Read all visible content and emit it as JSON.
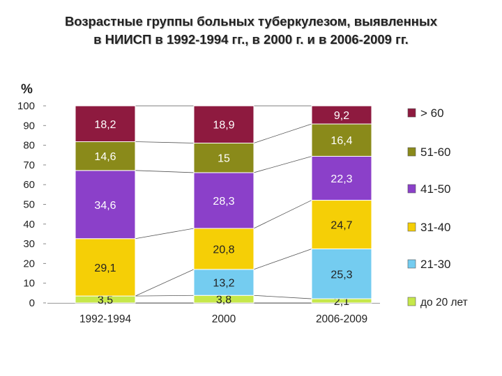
{
  "title": {
    "line1": "Возрастные группы больных туберкулезом, выявленных",
    "line2": "в НИИСП в 1992-1994 гг.,  в 2000 г. и  в 2006-2009 гг."
  },
  "chart_data": {
    "type": "bar",
    "stacked": true,
    "ylabel": "%",
    "ylim": [
      0,
      100
    ],
    "yticks": [
      "0",
      "10",
      "20",
      "30",
      "40",
      "50",
      "60",
      "70",
      "80",
      "90",
      "100"
    ],
    "categories": [
      "1992-1994",
      "2000",
      "2006-2009"
    ],
    "series": [
      {
        "name": "до 20 лет",
        "color": "#c6e84a",
        "values": [
          3.5,
          3.8,
          2.1
        ],
        "labels": [
          "3,5",
          "3,8",
          "2,1"
        ]
      },
      {
        "name": "21-30",
        "color": "#74ccf0",
        "values": [
          0,
          13.2,
          25.3
        ],
        "labels": [
          "",
          "13,2",
          "25,3"
        ]
      },
      {
        "name": "31-40",
        "color": "#f5cf06",
        "values": [
          29.1,
          20.8,
          24.7
        ],
        "labels": [
          "29,1",
          "20,8",
          "24,7"
        ]
      },
      {
        "name": "41-50",
        "color": "#8b40c9",
        "values": [
          34.6,
          28.3,
          22.3
        ],
        "labels": [
          "34,6",
          "28,3",
          "22,3"
        ]
      },
      {
        "name": "51-60",
        "color": "#8a8a1a",
        "values": [
          14.6,
          15,
          16.4
        ],
        "labels": [
          "14,6",
          "15",
          "16,4"
        ]
      },
      {
        "name": "> 60",
        "color": "#8e1a3f",
        "values": [
          18.2,
          18.9,
          9.2
        ],
        "labels": [
          "18,2",
          "18,9",
          "9,2"
        ]
      }
    ],
    "legend": "right",
    "grid": false,
    "connector_lines": true
  }
}
